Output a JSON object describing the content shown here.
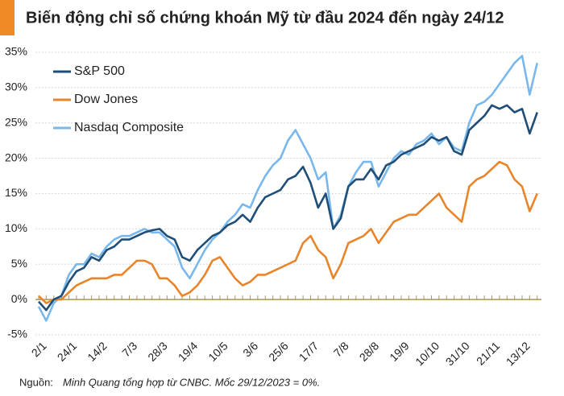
{
  "chart_data": {
    "type": "line",
    "title": "Biến động chỉ số chứng khoán Mỹ từ đầu 2024 đến ngày 24/12",
    "source_label": "Nguồn:",
    "source_text": "Minh Quang tổng hợp từ CNBC. Mốc 29/12/2023 = 0%.",
    "categories": [
      "2/1",
      null,
      null,
      null,
      "24/1",
      null,
      null,
      null,
      "14/2",
      null,
      null,
      null,
      "7/3",
      null,
      null,
      null,
      "28/3",
      null,
      null,
      null,
      "19/4",
      null,
      null,
      null,
      "10/5",
      null,
      null,
      null,
      "3/6",
      null,
      null,
      null,
      "25/6",
      null,
      null,
      null,
      "17/7",
      null,
      null,
      null,
      "7/8",
      null,
      null,
      null,
      "28/8",
      null,
      null,
      null,
      "19/9",
      null,
      null,
      null,
      "10/10",
      null,
      null,
      null,
      "31/10",
      null,
      null,
      null,
      "21/11",
      null,
      null,
      null,
      "13/12",
      null,
      null
    ],
    "series": [
      {
        "name": "S&P 500",
        "color": "#1f4e79",
        "values": [
          -0.3,
          -1.5,
          0,
          0.5,
          2.5,
          4,
          4.5,
          6,
          5.5,
          7,
          7.5,
          8.5,
          8.5,
          9,
          9.5,
          9.8,
          10,
          9,
          8.5,
          6,
          5.5,
          7,
          8,
          9,
          9.5,
          10.5,
          11,
          12,
          11,
          13,
          14.5,
          15,
          15.5,
          17,
          17.5,
          18.8,
          16.5,
          13,
          15,
          10,
          11.5,
          16,
          17,
          17,
          18.5,
          17,
          19,
          19.5,
          20.5,
          21,
          21.5,
          22,
          23,
          22.5,
          23,
          21,
          20.5,
          24,
          25,
          26,
          27.5,
          27,
          27.5,
          26.5,
          27,
          23.5,
          26.5
        ]
      },
      {
        "name": "Dow Jones",
        "color": "#e8852a",
        "values": [
          0.5,
          -0.5,
          0,
          0,
          1,
          2,
          2.5,
          3,
          3,
          3,
          3.5,
          3.5,
          4.5,
          5.5,
          5.5,
          5,
          3,
          3,
          2,
          0.5,
          1,
          2,
          3.5,
          5.5,
          6,
          4.5,
          3,
          2,
          2.5,
          3.5,
          3.5,
          4,
          4.5,
          5,
          5.5,
          8,
          9,
          7,
          6,
          3,
          5,
          8,
          8.5,
          9,
          10,
          8,
          9.5,
          11,
          11.5,
          12,
          12,
          13,
          14,
          15,
          13,
          12,
          11,
          16,
          17,
          17.5,
          18.5,
          19.5,
          19,
          17,
          16,
          12.5,
          15
        ]
      },
      {
        "name": "Nasdaq Composite",
        "color": "#7ab8ec",
        "values": [
          -1,
          -3,
          -0.5,
          0.5,
          3.5,
          5,
          5,
          6.5,
          6,
          7.5,
          8.5,
          9,
          9,
          9.5,
          10,
          9.5,
          9.5,
          8.5,
          7.5,
          4.5,
          3,
          5,
          7,
          8.5,
          9.5,
          11,
          12,
          13.5,
          13,
          15.5,
          17.5,
          19,
          20,
          22.5,
          24,
          22,
          20,
          17,
          18,
          10,
          12,
          16,
          18,
          19.5,
          19.5,
          16,
          18,
          20,
          21,
          20.5,
          22,
          22.5,
          23.5,
          22,
          23,
          21.5,
          21,
          25,
          27.5,
          28,
          29,
          30.5,
          32,
          33.5,
          34.5,
          29,
          33.5
        ]
      }
    ],
    "ylim": [
      -5,
      35
    ],
    "yticks": [
      {
        "value": -5,
        "label": "-5%"
      },
      {
        "value": 0,
        "label": "0%"
      },
      {
        "value": 5,
        "label": "5%"
      },
      {
        "value": 10,
        "label": "10%"
      },
      {
        "value": 15,
        "label": "15%"
      },
      {
        "value": 20,
        "label": "20%"
      },
      {
        "value": 25,
        "label": "25%"
      },
      {
        "value": 30,
        "label": "30%"
      },
      {
        "value": 35,
        "label": "35%"
      }
    ],
    "grid": true,
    "legend": "top-left",
    "axis_color": "#a89a4a"
  }
}
